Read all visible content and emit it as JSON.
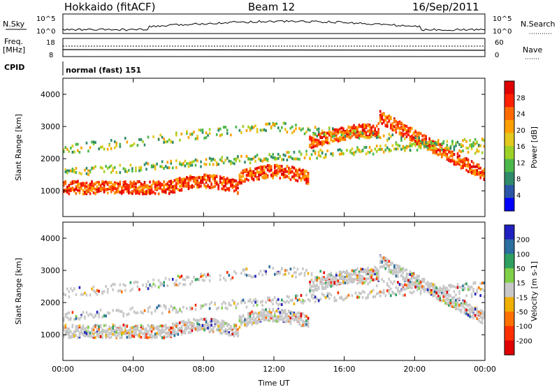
{
  "header": {
    "station": "Hokkaido (fitACF)",
    "beam": "Beam 12",
    "date": "16/Sep/2011"
  },
  "top_panels": {
    "nsky_label": "N.Sky",
    "nsky_ticks": [
      "10^5",
      "10^0"
    ],
    "nsearch_label": "N.Search",
    "freq_label_1": "Freq.",
    "freq_label_2": "[MHz]",
    "freq_ticks": [
      "18",
      "8"
    ],
    "nave_ticks": [
      "60",
      "0"
    ],
    "nave_label": "Nave",
    "cpid_label": "CPID",
    "cpid_value": "normal (fast) 151"
  },
  "chart_data": [
    {
      "type": "heatmap",
      "name": "power",
      "ylabel": "Slant Range [km]",
      "xlabel": "Time UT",
      "x_ticks": [
        "00:00",
        "04:00",
        "08:00",
        "12:00",
        "16:00",
        "20:00",
        "00:00"
      ],
      "x_range_hours": [
        0,
        24
      ],
      "y_ticks": [
        1000,
        2000,
        3000,
        4000
      ],
      "ylim": [
        200,
        4500
      ],
      "colorbar": {
        "label": "Power [dB]",
        "ticks": [
          "4",
          "8",
          "12",
          "16",
          "20",
          "24",
          "28"
        ],
        "range": [
          0,
          32
        ],
        "colors": [
          "#0000ff",
          "#2b55a6",
          "#2f8a6a",
          "#4db84a",
          "#9ed126",
          "#e3c81e",
          "#ffa000",
          "#ff6a00",
          "#ff2000",
          "#e00000"
        ]
      }
    },
    {
      "type": "heatmap",
      "name": "velocity",
      "ylabel": "Slant Range [km]",
      "xlabel": "Time UT",
      "x_ticks": [
        "00:00",
        "04:00",
        "08:00",
        "12:00",
        "16:00",
        "20:00",
        "00:00"
      ],
      "x_range_hours": [
        0,
        24
      ],
      "y_ticks": [
        1000,
        2000,
        3000,
        4000
      ],
      "ylim": [
        200,
        4500
      ],
      "colorbar": {
        "label": "Velocity [m s-1]",
        "ticks": [
          "200",
          "100",
          "50",
          "15",
          "-15",
          "-50",
          "-100",
          "-200"
        ],
        "colors": [
          "#2020c0",
          "#2b6ea0",
          "#2fa060",
          "#7fd048",
          "#c8c8c8",
          "#f0b000",
          "#ff7000",
          "#ff3000",
          "#e00000"
        ]
      }
    }
  ]
}
